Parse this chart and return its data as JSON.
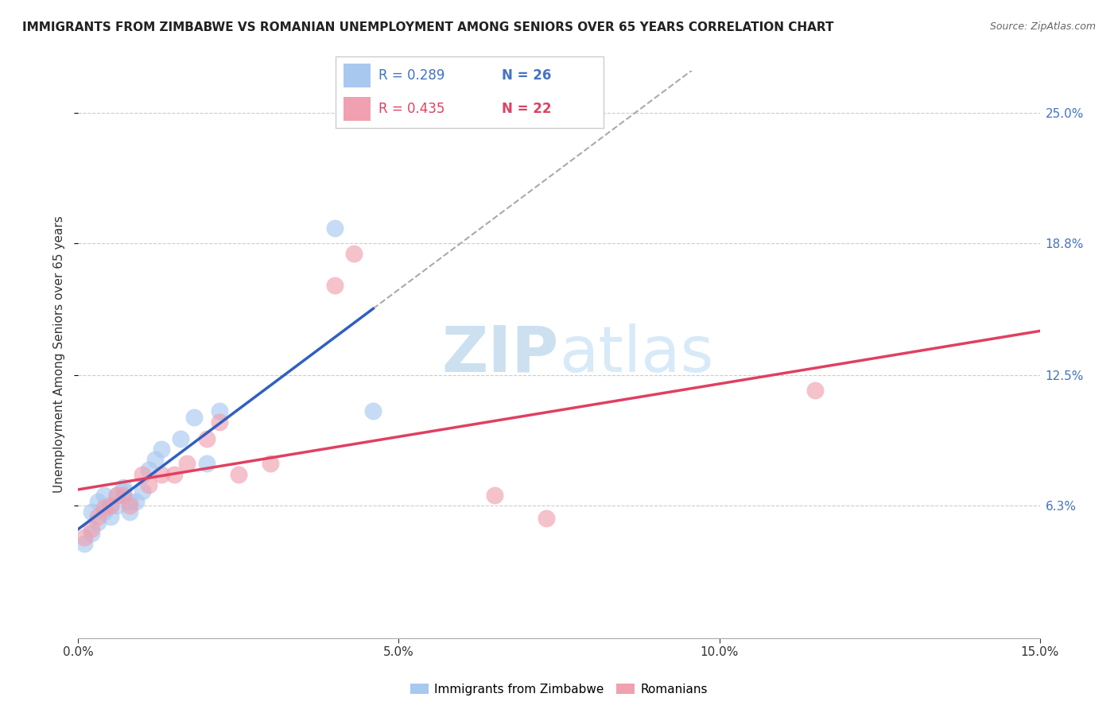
{
  "title": "IMMIGRANTS FROM ZIMBABWE VS ROMANIAN UNEMPLOYMENT AMONG SENIORS OVER 65 YEARS CORRELATION CHART",
  "source": "Source: ZipAtlas.com",
  "ylabel": "Unemployment Among Seniors over 65 years",
  "y_axis_labels": [
    "6.3%",
    "12.5%",
    "18.8%",
    "25.0%"
  ],
  "y_axis_values": [
    0.063,
    0.125,
    0.188,
    0.25
  ],
  "xlim": [
    0.0,
    0.15
  ],
  "ylim": [
    0.0,
    0.27
  ],
  "legend_labels": [
    "Immigrants from Zimbabwe",
    "Romanians"
  ],
  "legend_R1": "R = 0.289",
  "legend_N1": "N = 26",
  "legend_R2": "R = 0.435",
  "legend_N2": "N = 22",
  "color_zimbabwe": "#a8c8f0",
  "color_romanian": "#f0a0b0",
  "line_color_zimbabwe": "#3060c0",
  "line_color_romanian": "#e04060",
  "dashed_line_color": "#aaaaaa",
  "background_color": "#ffffff",
  "watermark_color": "#cce0f0",
  "zimbabwe_x": [
    0.001,
    0.002,
    0.002,
    0.003,
    0.003,
    0.004,
    0.004,
    0.005,
    0.005,
    0.006,
    0.006,
    0.007,
    0.007,
    0.008,
    0.008,
    0.009,
    0.01,
    0.011,
    0.012,
    0.013,
    0.016,
    0.018,
    0.02,
    0.022,
    0.04,
    0.046
  ],
  "zimbabwe_y": [
    0.045,
    0.05,
    0.06,
    0.055,
    0.065,
    0.06,
    0.068,
    0.063,
    0.058,
    0.063,
    0.068,
    0.07,
    0.072,
    0.065,
    0.06,
    0.065,
    0.07,
    0.08,
    0.085,
    0.09,
    0.095,
    0.105,
    0.083,
    0.108,
    0.195,
    0.108
  ],
  "romanian_x": [
    0.001,
    0.002,
    0.003,
    0.004,
    0.005,
    0.006,
    0.007,
    0.008,
    0.01,
    0.011,
    0.013,
    0.015,
    0.017,
    0.02,
    0.022,
    0.025,
    0.03,
    0.04,
    0.043,
    0.065,
    0.073,
    0.115
  ],
  "romanian_y": [
    0.048,
    0.052,
    0.058,
    0.062,
    0.063,
    0.068,
    0.068,
    0.063,
    0.078,
    0.073,
    0.078,
    0.078,
    0.083,
    0.095,
    0.103,
    0.078,
    0.083,
    0.168,
    0.183,
    0.068,
    0.057,
    0.118
  ],
  "x_tick_positions": [
    0.0,
    0.05,
    0.1,
    0.15
  ],
  "x_tick_labels": [
    "0.0%",
    "5.0%",
    "10.0%",
    "15.0%"
  ]
}
